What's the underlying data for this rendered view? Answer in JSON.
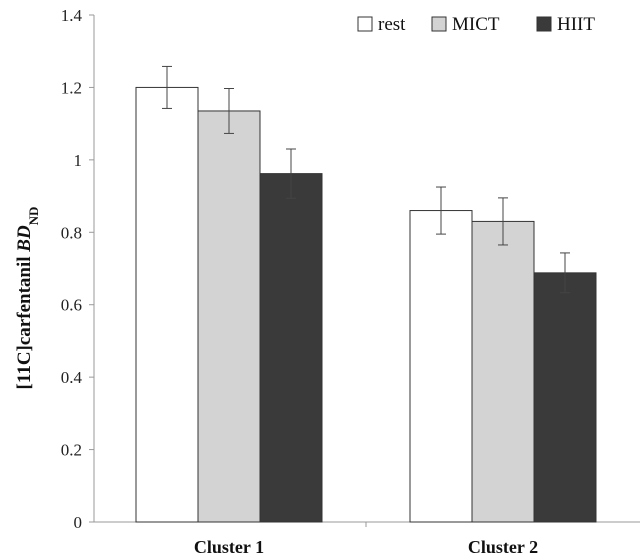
{
  "chart_data": {
    "type": "bar",
    "categories": [
      "Cluster 1",
      "Cluster 2"
    ],
    "series": [
      {
        "name": "rest",
        "color": "#ffffff",
        "values": [
          1.2,
          0.86
        ],
        "errors": [
          0.058,
          0.065
        ]
      },
      {
        "name": "MICT",
        "color": "#d3d3d3",
        "values": [
          1.135,
          0.83
        ],
        "errors": [
          0.062,
          0.065
        ]
      },
      {
        "name": "HIIT",
        "color": "#3a3a3a",
        "values": [
          0.962,
          0.688
        ],
        "errors": [
          0.068,
          0.055
        ]
      }
    ],
    "ylabel": {
      "main": "[11C]carfentanil ",
      "italic": "BD",
      "subscript": "ND"
    },
    "ylim": [
      0,
      1.4
    ],
    "yticks": [
      "0",
      "0.2",
      "0.4",
      "0.6",
      "0.8",
      "1",
      "1.2",
      "1.4"
    ],
    "legend_position": "top-right",
    "grid": false
  }
}
